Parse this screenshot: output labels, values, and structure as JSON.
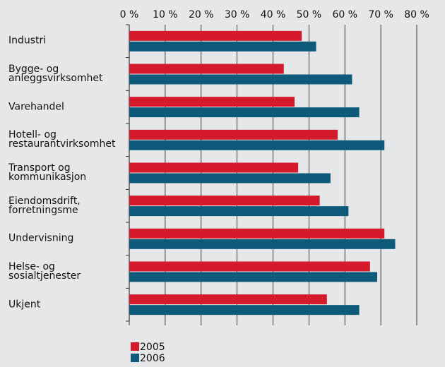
{
  "chart_data": {
    "type": "hbar",
    "categories": [
      "Industri",
      "Bygge- og\nanleggsvirksomhet",
      "Varehandel",
      "Hotell- og\nrestaurantvirksomhet",
      "Transport og\nkommunikasjon",
      "Eiendomsdrift,\nforretningsme",
      "Undervisning",
      "Helse- og\nsosialtjenester",
      "Ukjent"
    ],
    "series": [
      {
        "name": "2005",
        "color": "#d51a2b",
        "values": [
          48,
          43,
          46,
          58,
          47,
          53,
          71,
          67,
          55
        ]
      },
      {
        "name": "2006",
        "color": "#0d5a7b",
        "values": [
          52,
          62,
          64,
          71,
          56,
          61,
          74,
          69,
          64
        ]
      }
    ],
    "xlim": [
      0,
      80
    ],
    "xticks": [
      {
        "value": 0,
        "label": "0 %"
      },
      {
        "value": 10,
        "label": "10 %"
      },
      {
        "value": 20,
        "label": "20 %"
      },
      {
        "value": 30,
        "label": "30 %"
      },
      {
        "value": 40,
        "label": "40 %"
      },
      {
        "value": 50,
        "label": "50 %"
      },
      {
        "value": 60,
        "label": "60 %"
      },
      {
        "value": 70,
        "label": "70 %"
      },
      {
        "value": 80,
        "label": "80 %"
      }
    ],
    "grid": true,
    "legend": "bottom-left"
  }
}
